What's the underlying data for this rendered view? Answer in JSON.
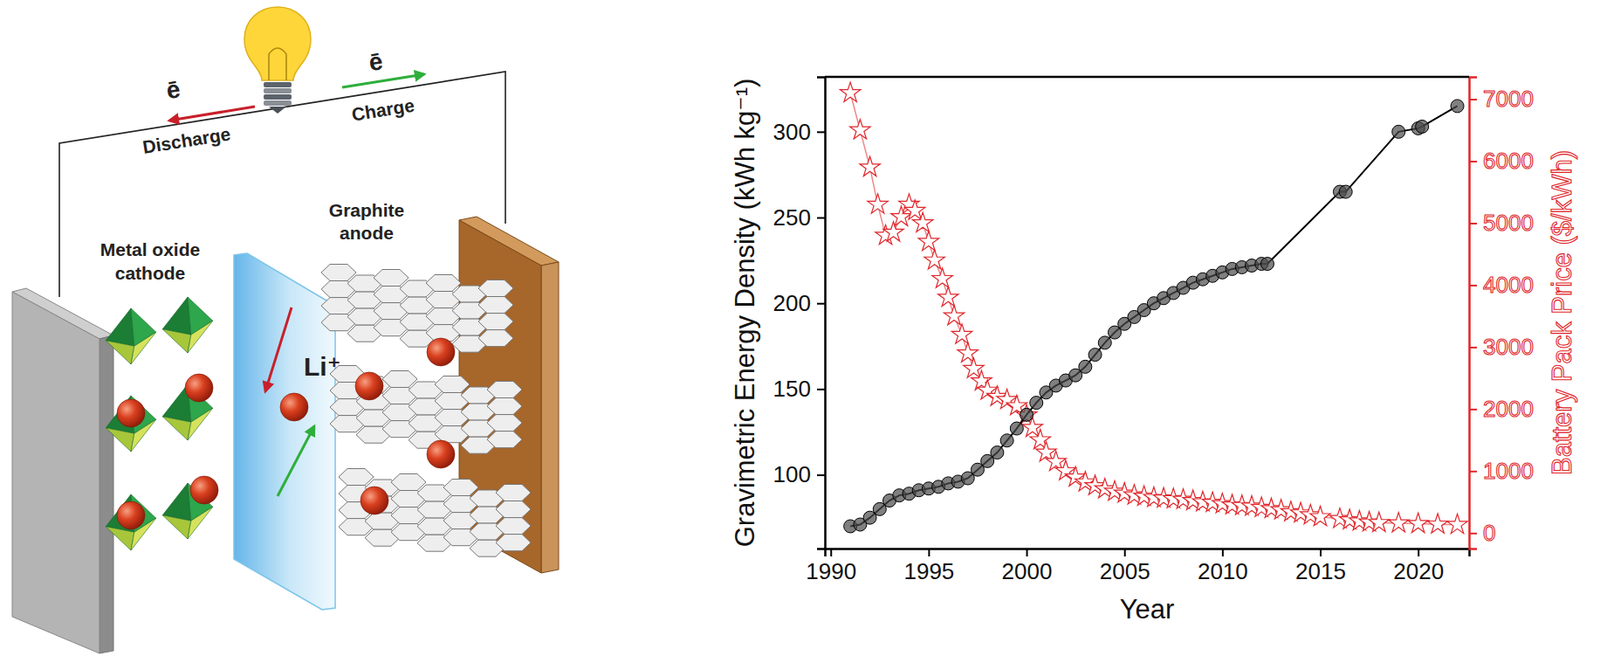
{
  "diagram": {
    "electron_discharge": "ē",
    "electron_charge": "ē",
    "discharge_label": "Discharge",
    "charge_label": "Charge",
    "cathode_label": [
      "Metal oxide",
      "cathode"
    ],
    "anode_label": [
      "Graphite",
      "anode"
    ],
    "ion_label": "Li⁺"
  },
  "chart_data": {
    "type": "line",
    "xlabel": "Year",
    "ylabel": "Gravimetric Energy Density (kWh kg⁻¹)",
    "y2label": "Battery Pack Price ($/kWh)",
    "xlim": [
      1989.7,
      2022.6
    ],
    "xticks": [
      1990,
      1995,
      2000,
      2005,
      2010,
      2015,
      2020
    ],
    "ylim": [
      57,
      332
    ],
    "yticks": [
      100,
      150,
      200,
      250,
      300
    ],
    "y2lim": [
      -250,
      7360
    ],
    "y2ticks": [
      0,
      1000,
      2000,
      3000,
      4000,
      5000,
      6000,
      7000
    ],
    "grid": false,
    "series": [
      {
        "color": "#000000",
        "marker": "circle",
        "line_style": "solid",
        "x": [
          1991,
          1991.5,
          1992,
          1992.5,
          1993,
          1993.5,
          1994,
          1994.5,
          1995,
          1995.5,
          1996,
          1996.5,
          1997,
          1997.5,
          1998,
          1998.5,
          1999,
          1999.5,
          2000,
          2000.5,
          2001,
          2001.5,
          2002,
          2002.5,
          2003,
          2003.5,
          2004,
          2004.5,
          2005,
          2005.5,
          2006,
          2006.5,
          2007,
          2007.5,
          2008,
          2008.5,
          2009,
          2009.5,
          2010,
          2010.5,
          2011,
          2011.5,
          2012,
          2012.3,
          2016,
          2016.3,
          2019,
          2020,
          2020.2,
          2022
        ],
        "values": [
          70,
          71,
          75,
          80,
          85,
          88,
          89,
          91,
          92,
          93,
          95,
          96,
          98,
          103,
          108,
          113,
          120,
          127,
          135,
          142,
          148,
          152,
          155,
          158,
          163,
          170,
          177,
          183,
          188,
          192,
          196,
          200,
          203,
          206,
          209,
          212,
          214,
          216,
          218,
          220,
          221,
          222,
          223,
          223,
          265,
          265,
          300,
          302,
          303,
          315
        ]
      },
      {
        "color": "#e0262b",
        "marker": "star",
        "line_style": "solid",
        "axis": "y2",
        "x": [
          1991,
          1991.5,
          1992,
          1992.4,
          1992.8,
          1993.2,
          1993.6,
          1994,
          1994.3,
          1994.7,
          1995,
          1995.3,
          1995.7,
          1996,
          1996.3,
          1996.7,
          1997,
          1997.3,
          1997.7,
          1998,
          1998.5,
          1999,
          1999.5,
          2000,
          2000.3,
          2000.7,
          2001,
          2001.5,
          2002,
          2002.5,
          2003,
          2003.5,
          2004,
          2004.5,
          2005,
          2005.5,
          2006,
          2006.5,
          2007,
          2007.5,
          2008,
          2008.5,
          2009,
          2009.5,
          2010,
          2010.5,
          2011,
          2011.5,
          2012,
          2012.5,
          2013,
          2013.5,
          2014,
          2014.5,
          2015,
          2016,
          2016.5,
          2017,
          2017.5,
          2018,
          2019,
          2020,
          2021,
          2022
        ],
        "values": [
          7100,
          6500,
          5900,
          5300,
          4800,
          4850,
          5100,
          5300,
          5200,
          5000,
          4700,
          4400,
          4100,
          3800,
          3500,
          3200,
          2900,
          2650,
          2450,
          2300,
          2200,
          2150,
          2050,
          1900,
          1700,
          1500,
          1300,
          1150,
          1000,
          900,
          820,
          760,
          710,
          670,
          640,
          610,
          590,
          570,
          560,
          550,
          540,
          520,
          500,
          490,
          470,
          450,
          440,
          430,
          410,
          390,
          370,
          340,
          320,
          290,
          260,
          230,
          210,
          190,
          175,
          165,
          160,
          150,
          140,
          135
        ]
      }
    ]
  }
}
